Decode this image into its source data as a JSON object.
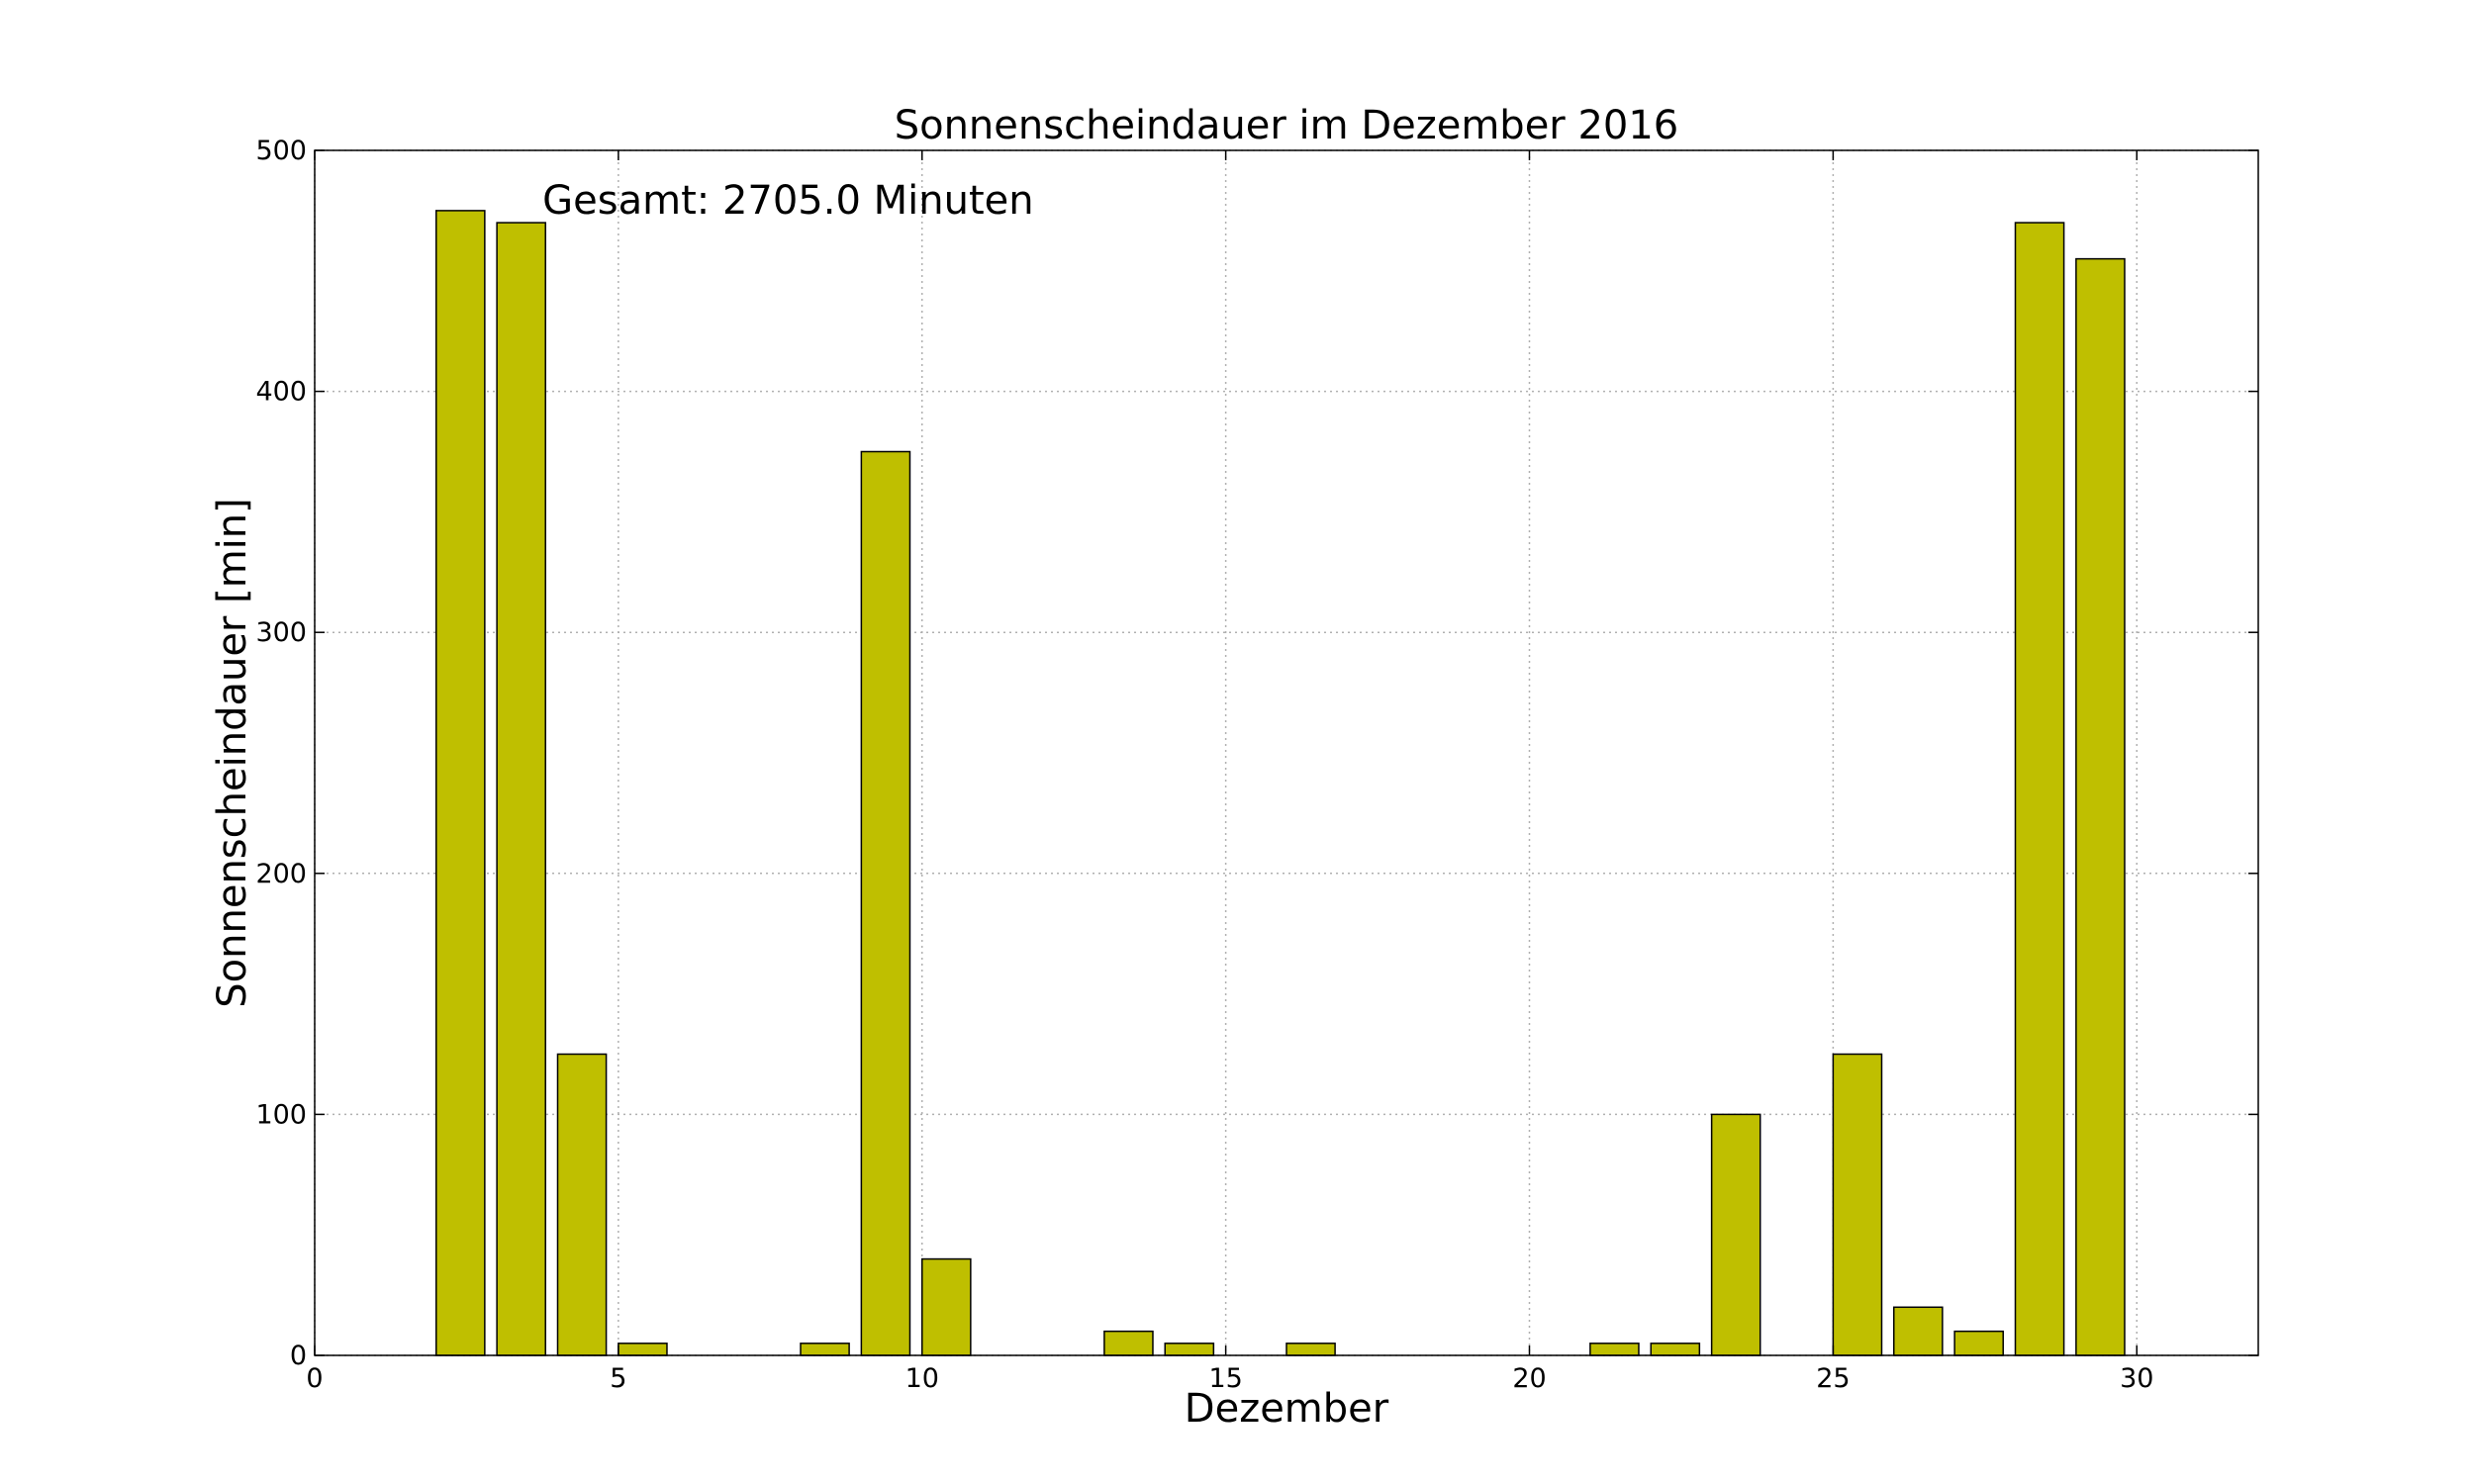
{
  "chart_data": {
    "type": "bar",
    "title": "Sonnenscheindauer im Dezember 2016",
    "xlabel": "Dezember",
    "ylabel": "Sonnenscheindauer [min]",
    "annotation": "Gesamt: 2705.0 Minuten",
    "xlim": [
      0,
      32
    ],
    "ylim": [
      0,
      500
    ],
    "xticks": [
      0,
      5,
      10,
      15,
      20,
      25,
      30
    ],
    "yticks": [
      0,
      100,
      200,
      300,
      400,
      500
    ],
    "grid": true,
    "bar_color": "#bfbf00",
    "bar_width": 0.8,
    "x": [
      1,
      2,
      3,
      4,
      5,
      6,
      7,
      8,
      9,
      10,
      11,
      12,
      13,
      14,
      15,
      16,
      17,
      18,
      19,
      20,
      21,
      22,
      23,
      24,
      25,
      26,
      27,
      28,
      29,
      30,
      31
    ],
    "values": [
      0,
      475,
      470,
      125,
      5,
      0,
      0,
      5,
      375,
      40,
      0,
      0,
      10,
      5,
      0,
      5,
      0,
      0,
      0,
      0,
      5,
      5,
      100,
      0,
      125,
      20,
      10,
      470,
      455,
      0,
      0
    ]
  }
}
